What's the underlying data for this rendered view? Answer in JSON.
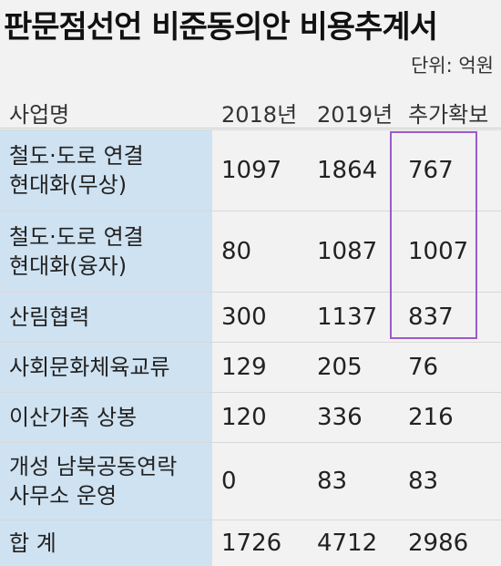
{
  "title": "판문점선언 비준동의안 비용추계서",
  "unit": "단위: 억원",
  "headers": {
    "name": "사업명",
    "y2018": "2018년",
    "y2019": "2019년",
    "extra": "추가확보"
  },
  "rows": [
    {
      "name_line1": "철도·도로 연결",
      "name_line2": "현대화(무상)",
      "y2018": "1097",
      "y2019": "1864",
      "extra": "767"
    },
    {
      "name_line1": "철도·도로 연결",
      "name_line2": "현대화(융자)",
      "y2018": "80",
      "y2019": "1087",
      "extra": "1007"
    },
    {
      "name_line1": "산림협력",
      "name_line2": "",
      "y2018": "300",
      "y2019": "1137",
      "extra": "837"
    },
    {
      "name_line1": "사회문화체육교류",
      "name_line2": "",
      "y2018": "129",
      "y2019": "205",
      "extra": "76"
    },
    {
      "name_line1": "이산가족 상봉",
      "name_line2": "",
      "y2018": "120",
      "y2019": "336",
      "extra": "216"
    },
    {
      "name_line1": "개성 남북공동연락",
      "name_line2": "사무소 운영",
      "y2018": "0",
      "y2019": "83",
      "extra": "83"
    },
    {
      "name_line1": "합 계",
      "name_line2": "",
      "y2018": "1726",
      "y2019": "4712",
      "extra": "2986"
    }
  ],
  "colors": {
    "name_column_bg": "#cfe2f1",
    "highlight_border": "#9b5bc9",
    "background": "#f2f2f2"
  }
}
